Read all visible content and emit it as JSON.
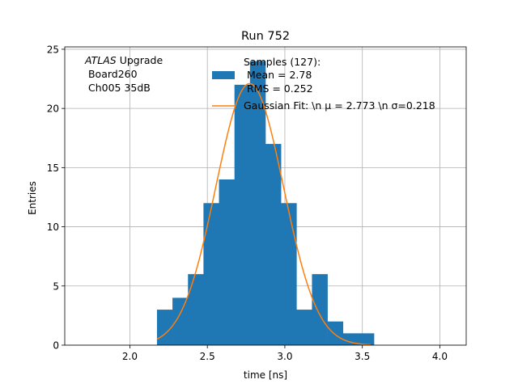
{
  "chart_data": {
    "type": "bar",
    "title": "Run 752",
    "xlabel": "time [ns]",
    "ylabel": "Entries",
    "xlim": [
      1.58,
      4.17
    ],
    "ylim": [
      0,
      25.2
    ],
    "xticks": [
      2.0,
      2.5,
      3.0,
      3.5,
      4.0
    ],
    "xtick_labels": [
      "2.0",
      "2.5",
      "3.0",
      "3.5",
      "4.0"
    ],
    "yticks": [
      0,
      5,
      10,
      15,
      20,
      25
    ],
    "ytick_labels": [
      "0",
      "5",
      "10",
      "15",
      "20",
      "25"
    ],
    "grid": true,
    "histogram": {
      "bin_edges": [
        2.175,
        2.275,
        2.375,
        2.475,
        2.575,
        2.675,
        2.775,
        2.875,
        2.975,
        3.075,
        3.175,
        3.275,
        3.375,
        3.475,
        3.575
      ],
      "counts": [
        3,
        4,
        6,
        12,
        14,
        22,
        24,
        17,
        12,
        3,
        6,
        2,
        1,
        1
      ],
      "color": "#1f77b4"
    },
    "fit": {
      "mu": 2.773,
      "sigma": 0.218,
      "amplitude": 22.1,
      "x_range": [
        2.175,
        3.555
      ],
      "color": "#ff7f0e"
    },
    "annotation": {
      "line1_italic": "ATLAS",
      "line1_rest": " Upgrade",
      "line2": " Board260",
      "line3": " Ch005 35dB"
    },
    "legend": {
      "placement": "top-center",
      "hist_label_lines": [
        "Samples (127):",
        " Mean = 2.78",
        " RMS = 0.252"
      ],
      "fit_label": "Gaussian Fit: \\n μ = 2.773 \\n σ=0.218"
    }
  }
}
